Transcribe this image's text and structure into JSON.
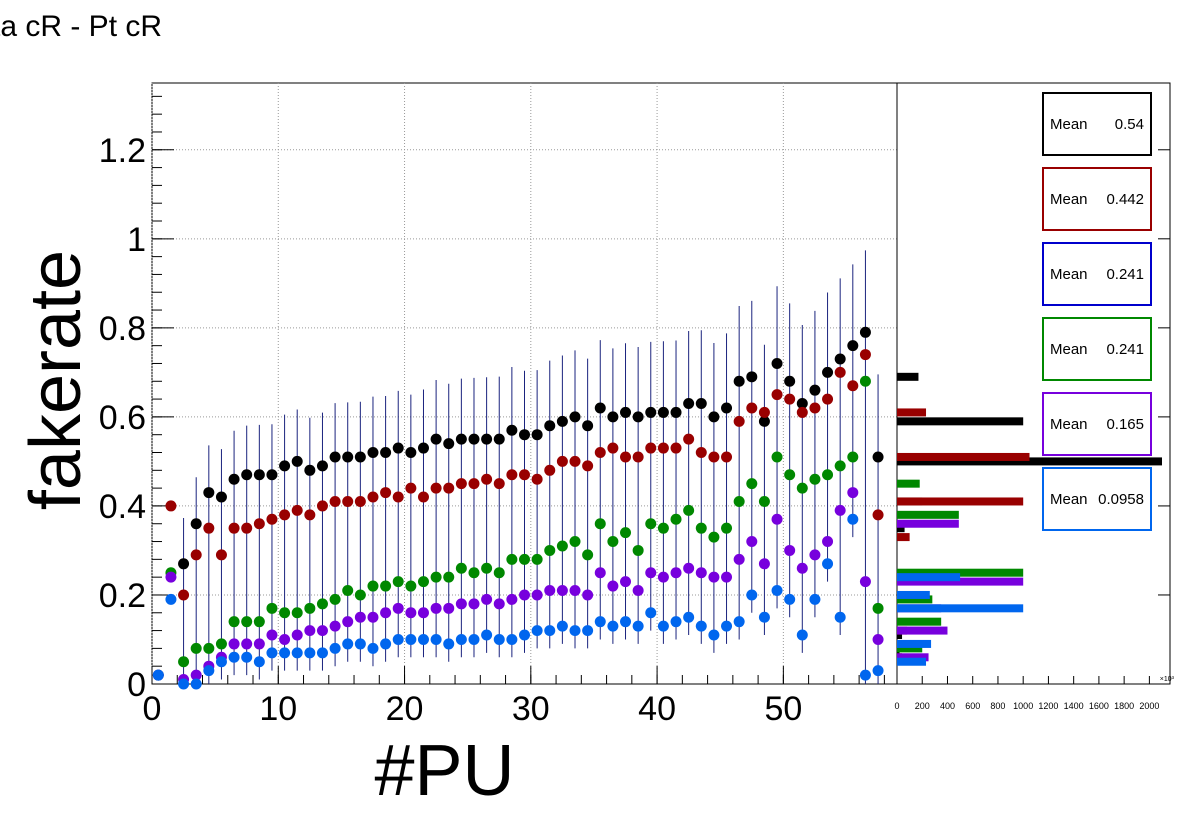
{
  "title": "ta cR - Pt cR",
  "chart_data": [
    {
      "type": "scatter",
      "xlabel": "#PU",
      "ylabel": "fakerate",
      "xlim": [
        0,
        59
      ],
      "ylim": [
        0,
        1.35
      ],
      "x_ticks": [
        "0",
        "10",
        "20",
        "30",
        "40",
        "50"
      ],
      "y_ticks": [
        "0",
        "0.2",
        "0.4",
        "0.6",
        "0.8",
        "1",
        "1.2"
      ],
      "grid": true,
      "x": [
        0.5,
        1.5,
        2.5,
        3.5,
        4.5,
        5.5,
        6.5,
        7.5,
        8.5,
        9.5,
        10.5,
        11.5,
        12.5,
        13.5,
        14.5,
        15.5,
        16.5,
        17.5,
        18.5,
        19.5,
        20.5,
        21.5,
        22.5,
        23.5,
        24.5,
        25.5,
        26.5,
        27.5,
        28.5,
        29.5,
        30.5,
        31.5,
        32.5,
        33.5,
        34.5,
        35.5,
        36.5,
        37.5,
        38.5,
        39.5,
        40.5,
        41.5,
        42.5,
        43.5,
        44.5,
        45.5,
        46.5,
        47.5,
        48.5,
        49.5,
        50.5,
        51.5,
        52.5,
        53.5,
        54.5,
        55.5,
        56.5,
        57.5,
        58.5
      ],
      "series": [
        {
          "color": "#000000",
          "values": [
            null,
            null,
            0.27,
            0.36,
            0.43,
            0.42,
            0.46,
            0.47,
            0.47,
            0.47,
            0.49,
            0.5,
            0.48,
            0.49,
            0.51,
            0.51,
            0.51,
            0.52,
            0.52,
            0.53,
            0.52,
            0.53,
            0.55,
            0.54,
            0.55,
            0.55,
            0.55,
            0.55,
            0.57,
            0.56,
            0.56,
            0.58,
            0.59,
            0.6,
            0.58,
            0.62,
            0.6,
            0.61,
            0.6,
            0.61,
            0.61,
            0.61,
            0.63,
            0.63,
            0.6,
            0.62,
            0.68,
            0.69,
            0.59,
            0.72,
            0.68,
            0.63,
            0.66,
            0.7,
            0.73,
            0.76,
            0.79,
            0.51,
            null
          ]
        },
        {
          "color": "#990000",
          "values": [
            null,
            0.4,
            0.2,
            0.29,
            0.35,
            0.29,
            0.35,
            0.35,
            0.36,
            0.37,
            0.38,
            0.39,
            0.38,
            0.4,
            0.41,
            0.41,
            0.41,
            0.42,
            0.43,
            0.42,
            0.44,
            0.42,
            0.44,
            0.44,
            0.45,
            0.45,
            0.46,
            0.45,
            0.47,
            0.47,
            0.46,
            0.48,
            0.5,
            0.5,
            0.49,
            0.52,
            0.53,
            0.51,
            0.51,
            0.53,
            0.53,
            0.53,
            0.55,
            0.52,
            0.51,
            0.51,
            0.59,
            0.62,
            0.61,
            0.65,
            0.64,
            0.61,
            0.62,
            0.64,
            0.7,
            0.67,
            0.74,
            0.38,
            null
          ]
        },
        {
          "color": "#008800",
          "values": [
            0.02,
            0.25,
            0.05,
            0.08,
            0.08,
            0.09,
            0.14,
            0.14,
            0.14,
            0.17,
            0.16,
            0.16,
            0.17,
            0.18,
            0.19,
            0.21,
            0.2,
            0.22,
            0.22,
            0.23,
            0.22,
            0.23,
            0.24,
            0.24,
            0.26,
            0.25,
            0.26,
            0.25,
            0.28,
            0.28,
            0.28,
            0.3,
            0.31,
            0.32,
            0.29,
            0.36,
            0.32,
            0.34,
            0.3,
            0.36,
            0.35,
            0.37,
            0.39,
            0.35,
            0.33,
            0.35,
            0.41,
            0.45,
            0.41,
            0.51,
            0.47,
            0.44,
            0.46,
            0.47,
            0.49,
            0.51,
            0.68,
            0.17,
            null
          ]
        },
        {
          "color": "#7700dd",
          "values": [
            0.02,
            0.24,
            0.01,
            0.02,
            0.04,
            0.06,
            0.09,
            0.09,
            0.09,
            0.11,
            0.1,
            0.11,
            0.12,
            0.12,
            0.13,
            0.14,
            0.15,
            0.15,
            0.16,
            0.17,
            0.16,
            0.16,
            0.17,
            0.17,
            0.18,
            0.18,
            0.19,
            0.18,
            0.19,
            0.2,
            0.2,
            0.21,
            0.21,
            0.21,
            0.2,
            0.25,
            0.22,
            0.23,
            0.21,
            0.25,
            0.24,
            0.25,
            0.26,
            0.25,
            0.24,
            0.24,
            0.28,
            0.32,
            0.27,
            0.37,
            0.3,
            0.26,
            0.29,
            0.32,
            0.39,
            0.43,
            0.23,
            0.1,
            null
          ]
        },
        {
          "color": "#0066ee",
          "values": [
            0.02,
            0.19,
            0.0,
            0.0,
            0.03,
            0.05,
            0.06,
            0.06,
            0.05,
            0.07,
            0.07,
            0.07,
            0.07,
            0.07,
            0.08,
            0.09,
            0.09,
            0.08,
            0.09,
            0.1,
            0.1,
            0.1,
            0.1,
            0.09,
            0.1,
            0.1,
            0.11,
            0.1,
            0.1,
            0.11,
            0.12,
            0.12,
            0.13,
            0.12,
            0.12,
            0.14,
            0.13,
            0.14,
            0.13,
            0.16,
            0.13,
            0.14,
            0.15,
            0.13,
            0.11,
            0.13,
            0.14,
            0.2,
            0.15,
            0.21,
            0.19,
            0.11,
            0.19,
            0.27,
            0.15,
            0.37,
            0.02,
            0.03,
            null
          ]
        }
      ],
      "error_color": "#1a237e"
    },
    {
      "type": "bar",
      "orientation": "horizontal",
      "x_ticks": [
        "0",
        "200",
        "400",
        "600",
        "800",
        "1000",
        "1200",
        "1400",
        "1600",
        "1800",
        "2000"
      ],
      "x_multiplier": "×10³",
      "xlim": [
        0,
        2100
      ],
      "series": [
        {
          "color": "#000000",
          "bins": [
            {
              "y": 0.69,
              "v": 170
            },
            {
              "y": 0.59,
              "v": 1000
            },
            {
              "y": 0.5,
              "v": 2100
            },
            {
              "y": 0.41,
              "v": 200
            },
            {
              "y": 0.35,
              "v": 60
            },
            {
              "y": 0.11,
              "v": 40
            },
            {
              "y": 0.07,
              "v": 20
            }
          ]
        },
        {
          "color": "#990000",
          "bins": [
            {
              "y": 0.61,
              "v": 230
            },
            {
              "y": 0.51,
              "v": 1050
            },
            {
              "y": 0.41,
              "v": 1000
            },
            {
              "y": 0.33,
              "v": 100
            },
            {
              "y": 0.12,
              "v": 80
            },
            {
              "y": 0.06,
              "v": 40
            }
          ]
        },
        {
          "color": "#008800",
          "bins": [
            {
              "y": 0.45,
              "v": 180
            },
            {
              "y": 0.38,
              "v": 490
            },
            {
              "y": 0.25,
              "v": 1000
            },
            {
              "y": 0.19,
              "v": 280
            },
            {
              "y": 0.14,
              "v": 350
            },
            {
              "y": 0.08,
              "v": 200
            }
          ]
        },
        {
          "color": "#7700dd",
          "bins": [
            {
              "y": 0.36,
              "v": 490
            },
            {
              "y": 0.23,
              "v": 1000
            },
            {
              "y": 0.17,
              "v": 350
            },
            {
              "y": 0.12,
              "v": 400
            },
            {
              "y": 0.06,
              "v": 250
            }
          ]
        },
        {
          "color": "#0066ee",
          "bins": [
            {
              "y": 0.24,
              "v": 500
            },
            {
              "y": 0.2,
              "v": 260
            },
            {
              "y": 0.17,
              "v": 1000
            },
            {
              "y": 0.09,
              "v": 270
            },
            {
              "y": 0.05,
              "v": 230
            }
          ]
        }
      ]
    }
  ],
  "stat_boxes": [
    {
      "label": "Mean",
      "value": "0.54",
      "color": "#000000"
    },
    {
      "label": "Mean",
      "value": "0.442",
      "color": "#990000"
    },
    {
      "label": "Mean",
      "value": "0.241",
      "color": "#0000cc"
    },
    {
      "label": "Mean",
      "value": "0.241",
      "color": "#008800"
    },
    {
      "label": "Mean",
      "value": "0.165",
      "color": "#7700dd"
    },
    {
      "label": "Mean",
      "value": "0.0958",
      "color": "#0066ee"
    }
  ]
}
